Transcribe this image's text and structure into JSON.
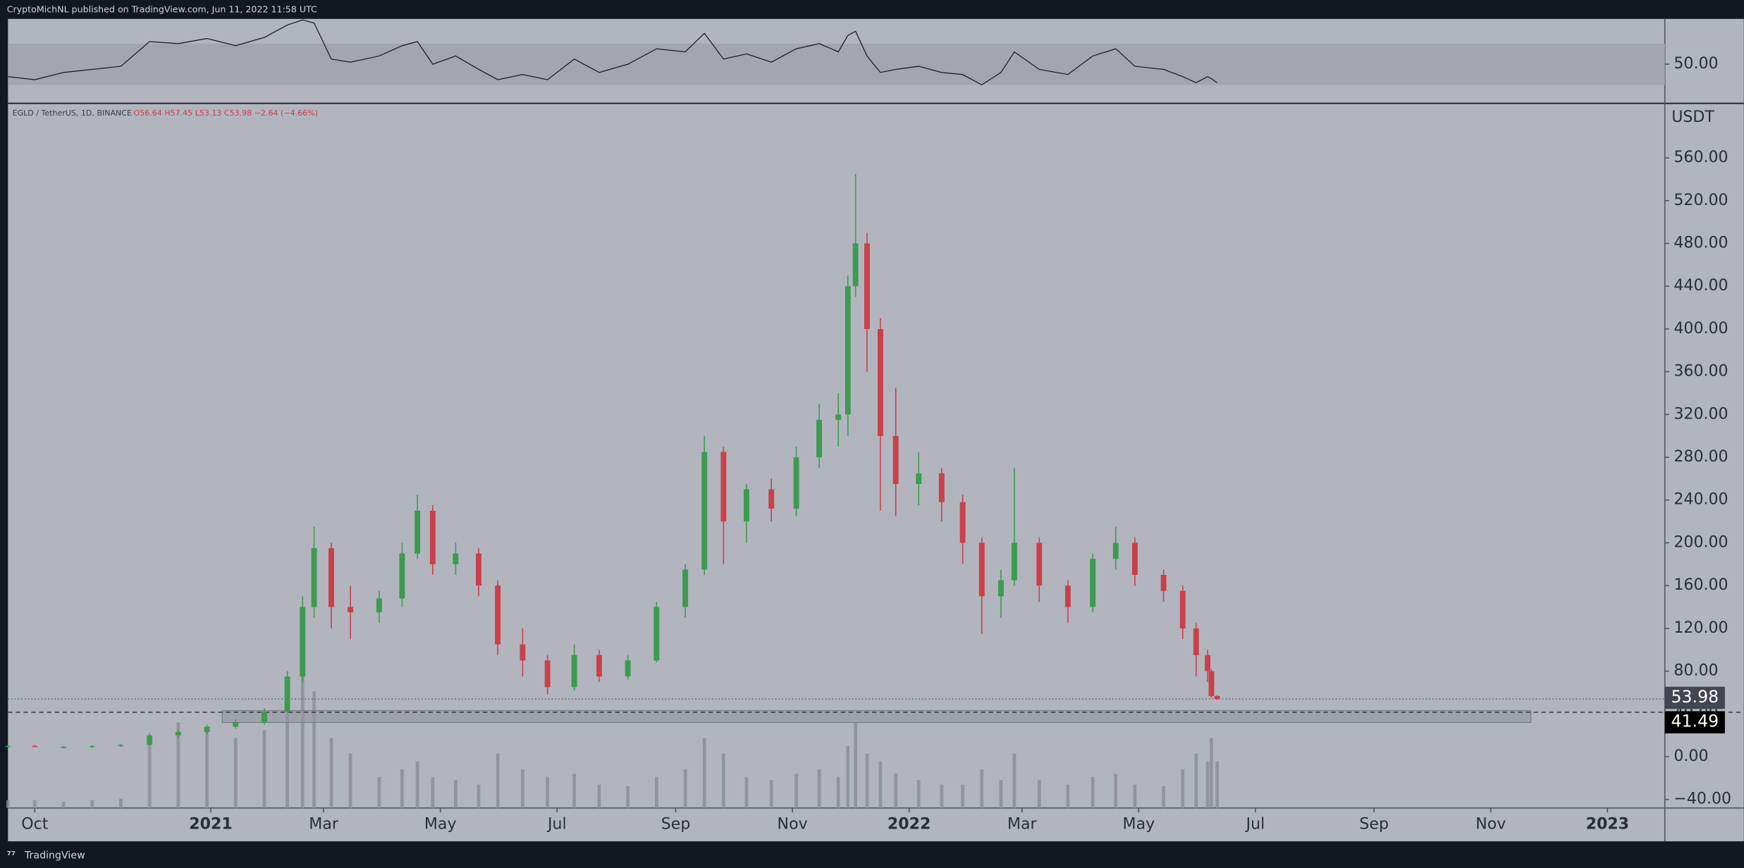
{
  "chart_data": {
    "type": "candlestick",
    "header": "CryptoMichNL published on TradingView.com, Jun 11, 2022 11:58 UTC",
    "symbol": "EGLD / TetherUS, 1D, BINANCE",
    "ohlc_legend": "O56.64 H57.45 L53.13 C53.98 −2.64 (−4.66%)",
    "currency": "USDT",
    "brand": "TradingView",
    "up_color": "#3d9a50",
    "down_color": "#c9404b",
    "x": [
      -14,
      0,
      15,
      30,
      45,
      60,
      75,
      90,
      105,
      120,
      132,
      140,
      146,
      155,
      165,
      180,
      192,
      200,
      208,
      220,
      232,
      242,
      255,
      268,
      282,
      295,
      310,
      325,
      340,
      350,
      360,
      372,
      385,
      398,
      410,
      420,
      425,
      429,
      435,
      442,
      450,
      462,
      474,
      485,
      495,
      505,
      512,
      525,
      540,
      553,
      565,
      575,
      590,
      600,
      607,
      613,
      615,
      618
    ],
    "open": [
      10,
      10,
      9,
      9,
      10,
      11,
      20,
      23,
      28,
      32,
      42,
      75,
      140,
      195,
      140,
      135,
      148,
      190,
      230,
      180,
      190,
      160,
      105,
      90,
      65,
      95,
      75,
      90,
      140,
      175,
      285,
      220,
      250,
      232,
      280,
      315,
      320,
      440,
      480,
      400,
      300,
      255,
      265,
      238,
      200,
      150,
      165,
      200,
      160,
      140,
      185,
      200,
      170,
      155,
      120,
      95,
      80,
      56.64
    ],
    "high": [
      11,
      11,
      10,
      11,
      12,
      22,
      25,
      30,
      35,
      45,
      80,
      150,
      215,
      200,
      160,
      155,
      200,
      245,
      235,
      200,
      195,
      165,
      120,
      95,
      105,
      100,
      95,
      145,
      180,
      300,
      290,
      255,
      260,
      290,
      330,
      340,
      450,
      545,
      490,
      410,
      345,
      285,
      270,
      245,
      205,
      175,
      270,
      205,
      165,
      190,
      215,
      205,
      175,
      160,
      125,
      100,
      82,
      57.45
    ],
    "low": [
      9,
      9,
      8,
      8,
      9,
      10,
      18,
      21,
      26,
      30,
      40,
      70,
      130,
      120,
      110,
      125,
      140,
      185,
      170,
      170,
      150,
      95,
      75,
      58,
      62,
      70,
      72,
      88,
      130,
      170,
      180,
      200,
      220,
      225,
      270,
      290,
      300,
      430,
      360,
      230,
      225,
      235,
      220,
      180,
      115,
      130,
      160,
      145,
      125,
      135,
      175,
      160,
      145,
      110,
      75,
      70,
      55,
      53.13
    ],
    "close": [
      10,
      9,
      9,
      10,
      11,
      20,
      23,
      28,
      32,
      42,
      75,
      140,
      195,
      140,
      135,
      148,
      190,
      230,
      180,
      190,
      160,
      105,
      90,
      65,
      95,
      75,
      90,
      140,
      175,
      285,
      220,
      250,
      232,
      280,
      315,
      320,
      440,
      480,
      400,
      300,
      255,
      265,
      238,
      200,
      150,
      165,
      200,
      160,
      140,
      185,
      200,
      170,
      155,
      120,
      95,
      80,
      56.64,
      53.98
    ],
    "xlim": [
      -14,
      852
    ],
    "xticks": [
      {
        "value": 0,
        "label": "Oct"
      },
      {
        "value": 92,
        "label": "2021"
      },
      {
        "value": 151,
        "label": "Mar"
      },
      {
        "value": 212,
        "label": "May"
      },
      {
        "value": 273,
        "label": "Jul"
      },
      {
        "value": 335,
        "label": "Sep"
      },
      {
        "value": 396,
        "label": "Nov"
      },
      {
        "value": 457,
        "label": "2022"
      },
      {
        "value": 516,
        "label": "Mar"
      },
      {
        "value": 577,
        "label": "May"
      },
      {
        "value": 638,
        "label": "Jul"
      },
      {
        "value": 700,
        "label": "Sep"
      },
      {
        "value": 761,
        "label": "Nov"
      },
      {
        "value": 822,
        "label": "2023"
      }
    ],
    "ylim": [
      -48,
      611
    ],
    "yticks": [
      {
        "value": -40,
        "label": "−40.00"
      },
      {
        "value": 0,
        "label": "0.00"
      },
      {
        "value": 40,
        "label": "40.00"
      },
      {
        "value": 80,
        "label": "80.00"
      },
      {
        "value": 120,
        "label": "120.00"
      },
      {
        "value": 160,
        "label": "160.00"
      },
      {
        "value": 200,
        "label": "200.00"
      },
      {
        "value": 240,
        "label": "240.00"
      },
      {
        "value": 280,
        "label": "280.00"
      },
      {
        "value": 320,
        "label": "320.00"
      },
      {
        "value": 360,
        "label": "360.00"
      },
      {
        "value": 400,
        "label": "400.00"
      },
      {
        "value": 440,
        "label": "440.00"
      },
      {
        "value": 480,
        "label": "480.00"
      },
      {
        "value": 520,
        "label": "520.00"
      },
      {
        "value": 560,
        "label": "560.00"
      }
    ],
    "level": 41.49,
    "zone": {
      "x": [
        98,
        782
      ],
      "y": [
        32,
        43
      ]
    },
    "volume": {
      "color": "#8a8d96",
      "ylim": [
        0,
        100
      ],
      "values": [
        5,
        5,
        4,
        5,
        6,
        40,
        55,
        50,
        45,
        50,
        60,
        90,
        75,
        45,
        35,
        20,
        25,
        30,
        20,
        18,
        15,
        35,
        25,
        20,
        22,
        15,
        14,
        20,
        25,
        45,
        35,
        20,
        18,
        22,
        25,
        20,
        40,
        55,
        35,
        30,
        22,
        18,
        15,
        15,
        25,
        18,
        35,
        18,
        15,
        20,
        22,
        15,
        14,
        25,
        35,
        30,
        45,
        30
      ]
    },
    "rsi": {
      "color": "#1a1a1a",
      "ylim": [
        12,
        94
      ],
      "band": [
        30,
        70
      ],
      "yticks": [
        {
          "value": 50,
          "label": "50.00"
        }
      ],
      "values": [
        38,
        35,
        42,
        45,
        48,
        72,
        70,
        75,
        68,
        76,
        88,
        93,
        90,
        55,
        52,
        58,
        68,
        72,
        50,
        58,
        45,
        35,
        40,
        35,
        55,
        42,
        50,
        65,
        62,
        80,
        55,
        60,
        52,
        65,
        70,
        62,
        78,
        82,
        58,
        42,
        45,
        48,
        42,
        40,
        30,
        42,
        62,
        45,
        40,
        58,
        65,
        48,
        45,
        38,
        32,
        38,
        36,
        32
      ]
    }
  }
}
